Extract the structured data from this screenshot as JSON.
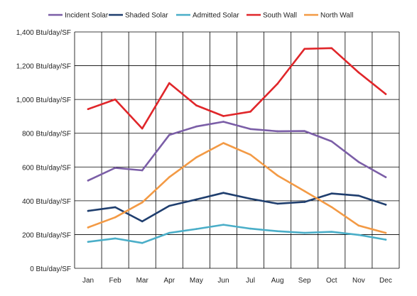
{
  "chart_data": {
    "type": "line",
    "title": "",
    "xlabel": "",
    "ylabel": "",
    "categories": [
      "Jan",
      "Feb",
      "Mar",
      "Apr",
      "May",
      "Jun",
      "Jul",
      "Aug",
      "Sep",
      "Oct",
      "Nov",
      "Dec"
    ],
    "y_ticks": [
      "0 Btu/day/SF",
      "200 Btu/day/SF",
      "400 Btu/day/SF",
      "600 Btu/day/SF",
      "800 Btu/day/SF",
      "1,000 Btu/day/SF",
      "1,200 Btu/day/SF",
      "1,400 Btu/day/SF"
    ],
    "ylim": [
      0,
      1400
    ],
    "grid": true,
    "legend_position": "top",
    "series": [
      {
        "name": "Incident Solar",
        "color": "#7b5ea7",
        "values": [
          520,
          595,
          580,
          790,
          840,
          868,
          825,
          812,
          813,
          752,
          630,
          540
        ]
      },
      {
        "name": "Shaded Solar",
        "color": "#1f3e6e",
        "values": [
          340,
          362,
          278,
          370,
          408,
          447,
          412,
          383,
          393,
          443,
          430,
          377
        ]
      },
      {
        "name": "Admitted Solar",
        "color": "#4aaec8",
        "values": [
          157,
          177,
          150,
          210,
          233,
          258,
          235,
          220,
          210,
          216,
          198,
          170
        ]
      },
      {
        "name": "South Wall",
        "color": "#e0262a",
        "values": [
          943,
          1000,
          828,
          1097,
          965,
          902,
          928,
          1093,
          1300,
          1304,
          1160,
          1032
        ]
      },
      {
        "name": "North Wall",
        "color": "#f39a45",
        "values": [
          242,
          302,
          390,
          540,
          657,
          742,
          673,
          550,
          457,
          363,
          253,
          210
        ]
      }
    ]
  }
}
